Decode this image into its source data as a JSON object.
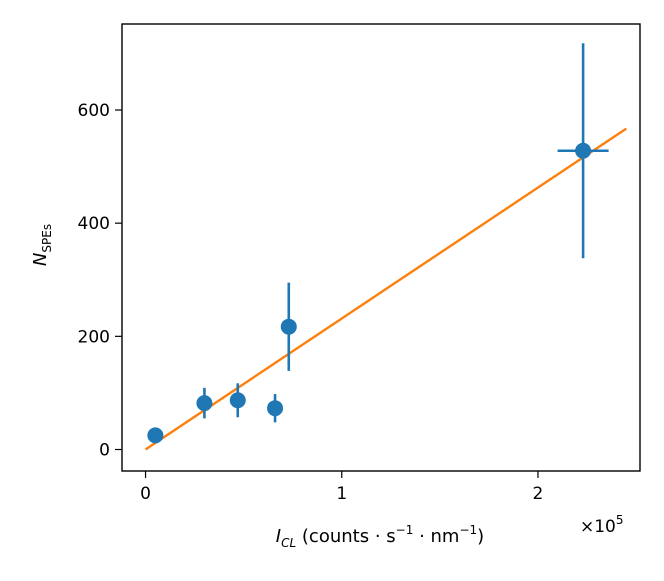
{
  "chart_data": {
    "type": "scatter",
    "xlabel": "I_CL (counts · s⁻¹ · nm⁻¹)",
    "xlabel_parts": {
      "main": "I",
      "sub": "CL",
      "rest": " (counts · s",
      "sup1": "−1",
      "mid": " · nm",
      "sup2": "−1",
      "end": ")"
    },
    "ylabel": "N_SPEs",
    "ylabel_parts": {
      "main": "N",
      "sub": "SPEs"
    },
    "x_offset_label": {
      "base": "×10",
      "exp": "5"
    },
    "xlim": [
      -0.12,
      2.52
    ],
    "ylim": [
      -38,
      752
    ],
    "xticks": [
      0,
      1,
      2
    ],
    "xtick_labels": [
      "0",
      "1",
      "2"
    ],
    "yticks": [
      0,
      200,
      400,
      600
    ],
    "ytick_labels": [
      "0",
      "200",
      "400",
      "600"
    ],
    "grid": false,
    "legend": "none",
    "series": [
      {
        "kind": "points_with_errorbars",
        "color": "#1f77b4",
        "points": [
          {
            "x": 0.05,
            "y": 25,
            "yerr": 0,
            "xerr": 0
          },
          {
            "x": 0.3,
            "y": 82,
            "yerr": 27,
            "xerr": 0
          },
          {
            "x": 0.47,
            "y": 87,
            "yerr": 30,
            "xerr": 0
          },
          {
            "x": 0.66,
            "y": 73,
            "yerr": 25,
            "xerr": 0
          },
          {
            "x": 0.73,
            "y": 217,
            "yerr": 78,
            "xerr": 0
          },
          {
            "x": 2.23,
            "y": 528,
            "yerr": 190,
            "xerr": 0.13
          }
        ]
      },
      {
        "kind": "fit_line",
        "color": "#ff7f0e",
        "x": [
          0.0,
          2.45
        ],
        "y": [
          0,
          567
        ]
      }
    ]
  }
}
